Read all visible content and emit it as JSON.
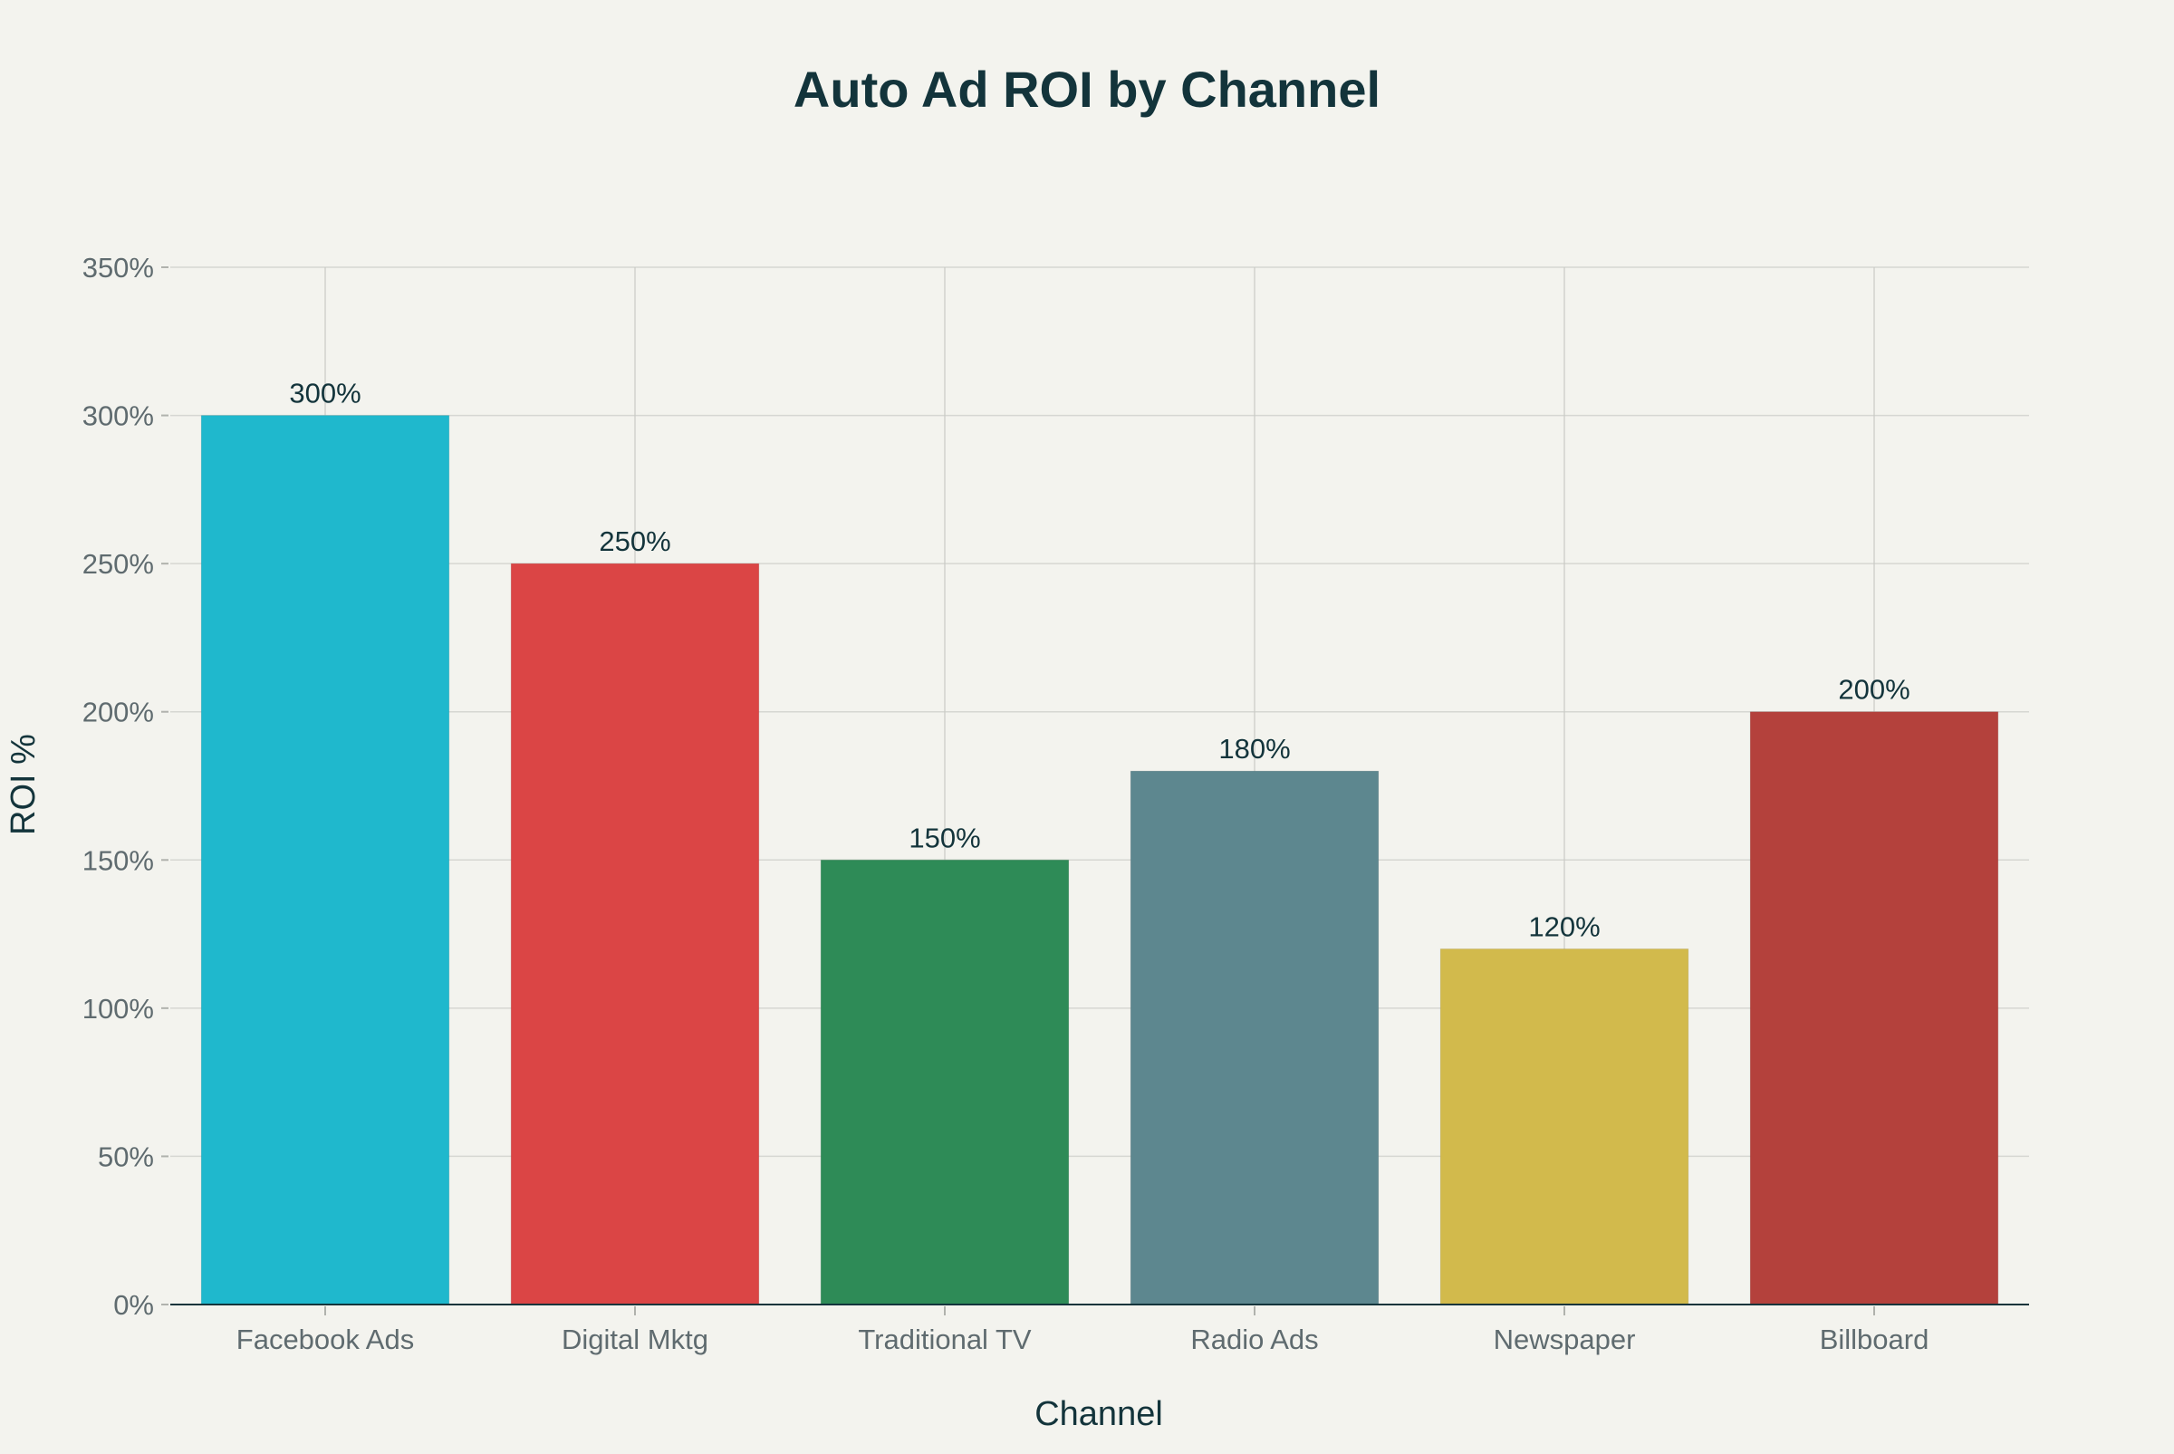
{
  "chart_data": {
    "type": "bar",
    "title": "Auto Ad ROI by Channel",
    "xlabel": "Channel",
    "ylabel": "ROI %",
    "categories": [
      "Facebook Ads",
      "Digital Mktg",
      "Traditional TV",
      "Radio Ads",
      "Newspaper",
      "Billboard"
    ],
    "values": [
      300,
      250,
      150,
      180,
      120,
      200
    ],
    "data_labels": [
      "300%",
      "250%",
      "150%",
      "180%",
      "120%",
      "200%"
    ],
    "colors": [
      "#1fb8cd",
      "#db4545",
      "#2e8b57",
      "#5d878f",
      "#d2ba4c",
      "#b4413c"
    ],
    "ylim": [
      0,
      350
    ],
    "yticks": [
      0,
      50,
      100,
      150,
      200,
      250,
      300,
      350
    ],
    "ytick_labels": [
      "0%",
      "50%",
      "100%",
      "150%",
      "200%",
      "250%",
      "300%",
      "350%"
    ],
    "grid": true,
    "legend": "none"
  }
}
